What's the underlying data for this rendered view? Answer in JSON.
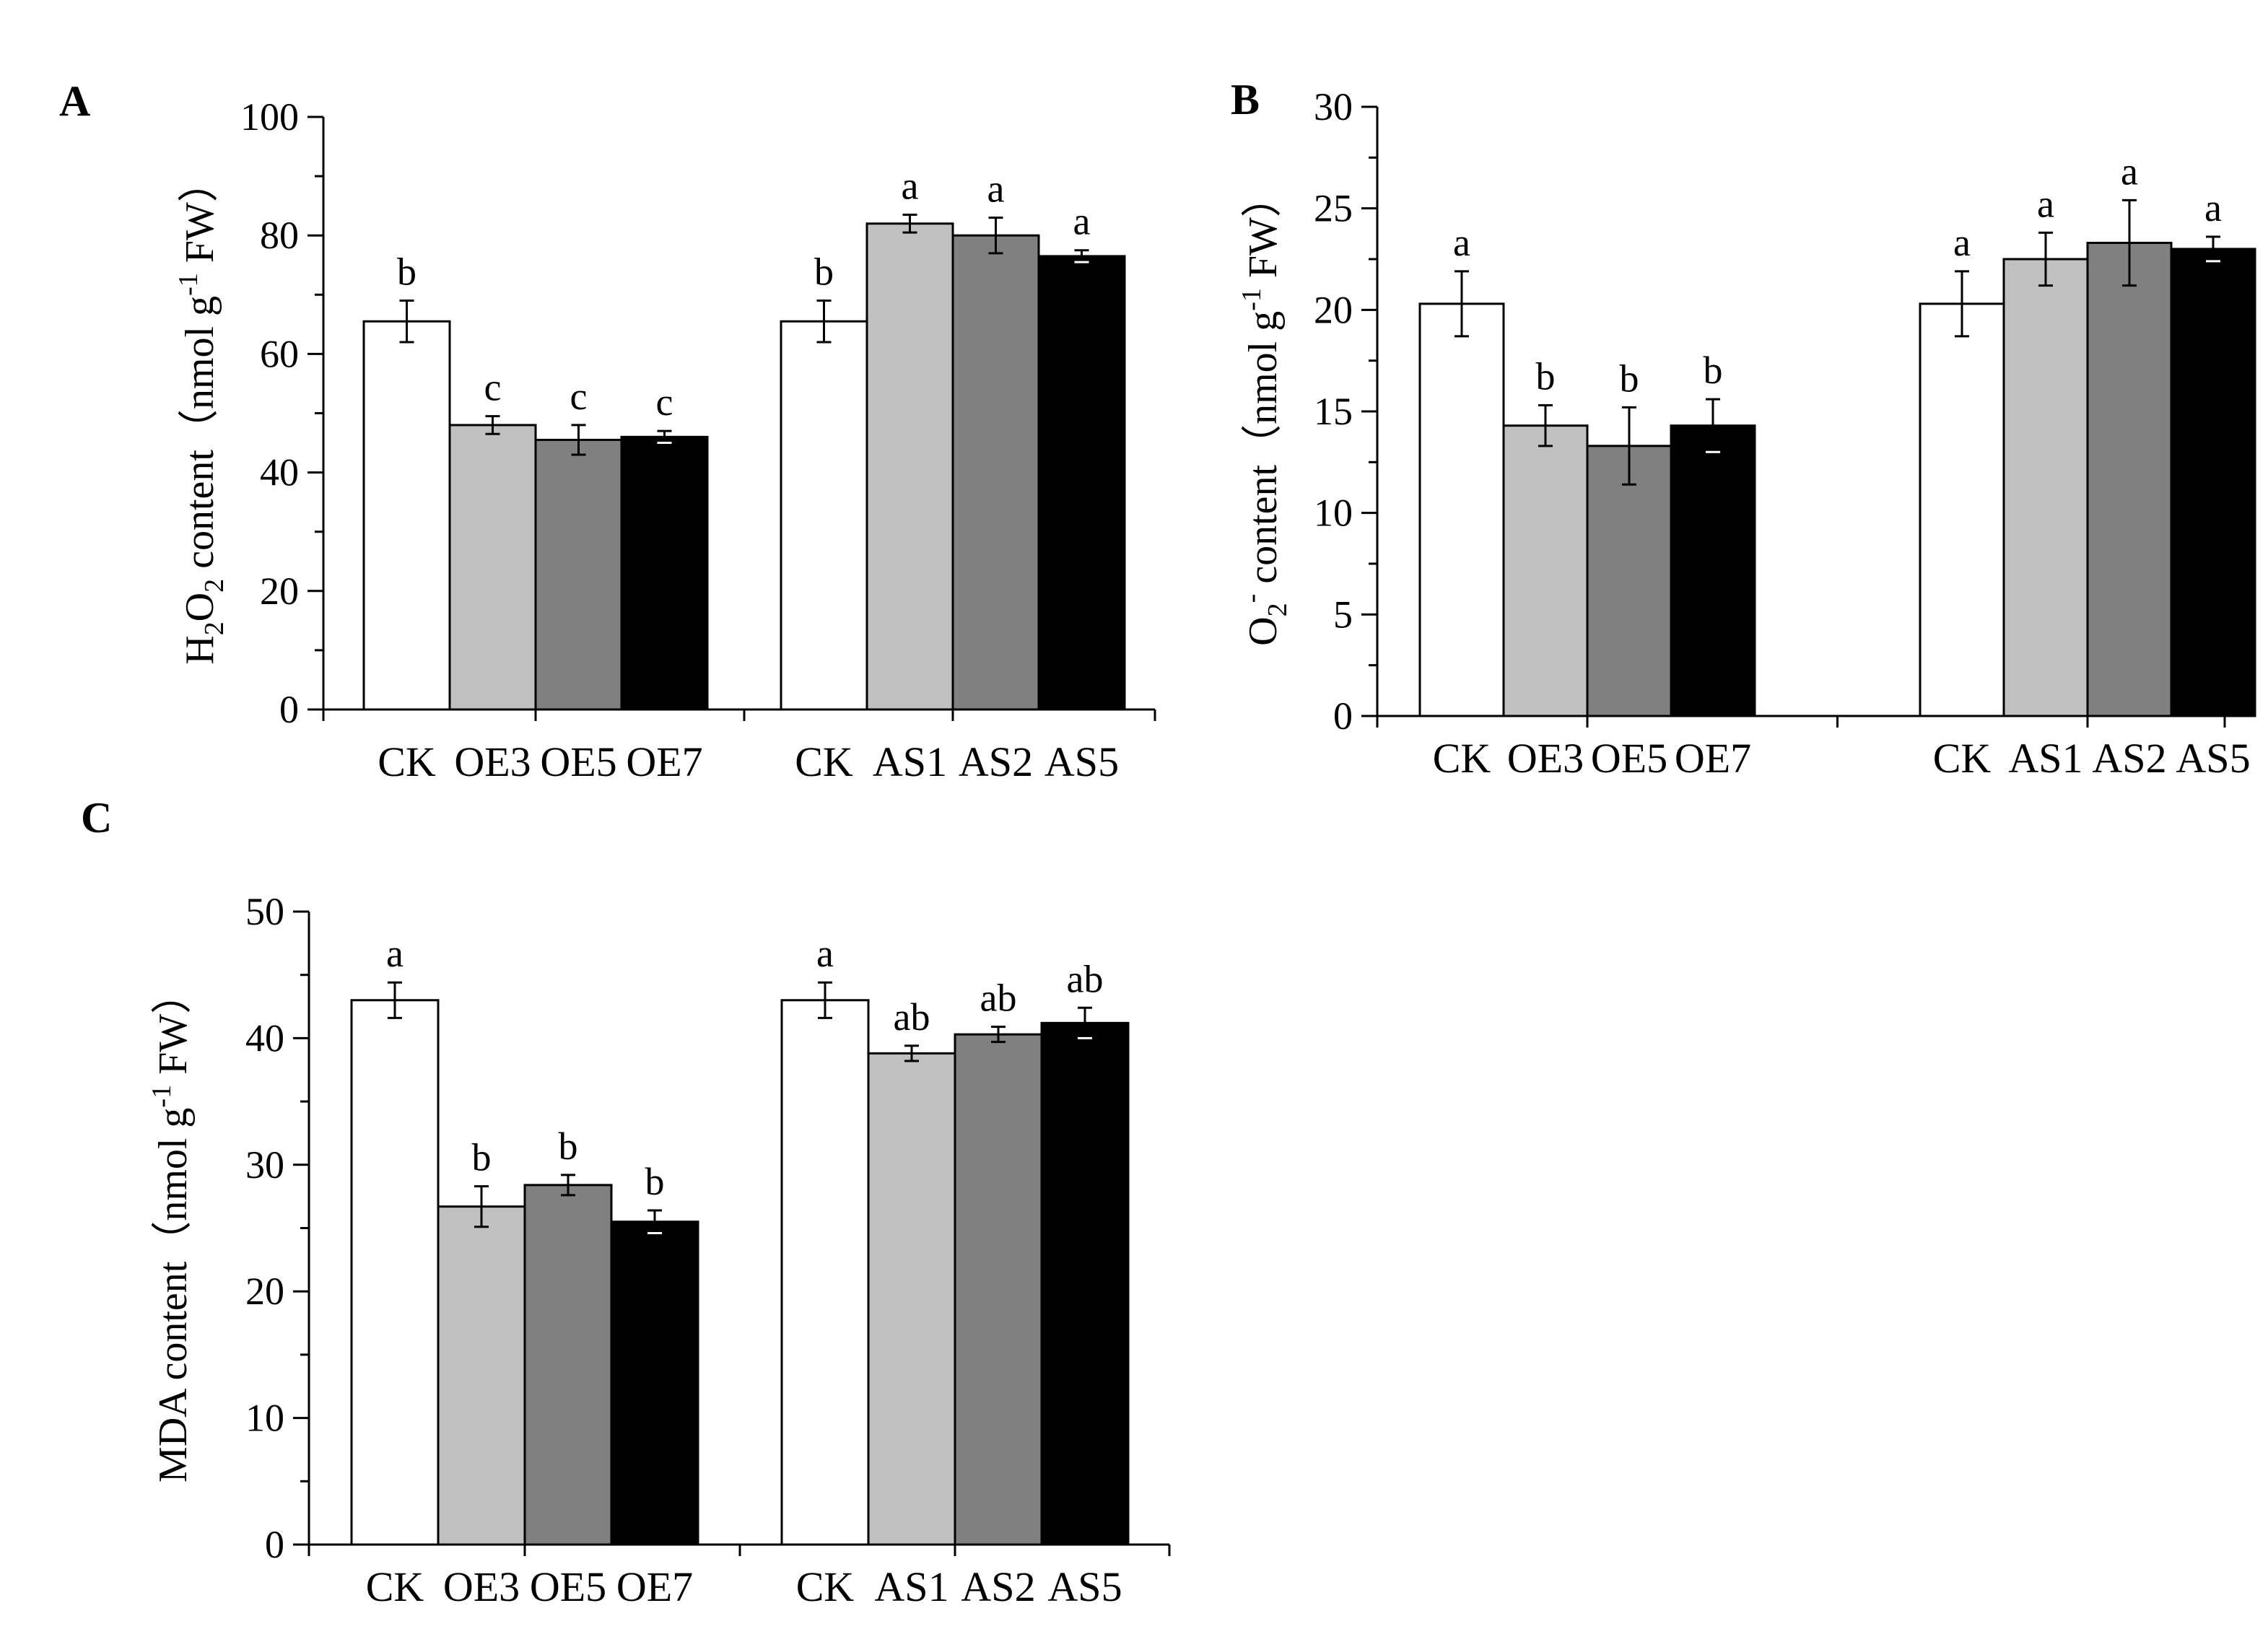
{
  "chart_data": [
    {
      "type": "bar",
      "panel": "A",
      "ylabel_parts": [
        "H",
        "2",
        "O",
        "2",
        " content（nmol g",
        "-1",
        " FW）"
      ],
      "ylim": [
        0,
        100
      ],
      "yticks": [
        "0",
        "20",
        "40",
        "60",
        "80",
        "100"
      ],
      "groups": [
        {
          "categories": [
            "CK",
            "OE3",
            "OE5",
            "OE7"
          ],
          "values": [
            65.5,
            48.0,
            45.5,
            46.0
          ],
          "errors": [
            3.5,
            1.5,
            2.5,
            1.0
          ],
          "significance": [
            "b",
            "c",
            "c",
            "c"
          ]
        },
        {
          "categories": [
            "CK",
            "AS1",
            "AS2",
            "AS5"
          ],
          "values": [
            65.5,
            82.0,
            80.0,
            76.5
          ],
          "errors": [
            3.5,
            1.5,
            3.0,
            1.0
          ],
          "significance": [
            "b",
            "a",
            "a",
            "a"
          ]
        }
      ]
    },
    {
      "type": "bar",
      "panel": "B",
      "ylabel_parts": [
        "O",
        "2",
        "-",
        " content（nmol g",
        "-1",
        " FW）"
      ],
      "ylim": [
        0,
        30
      ],
      "yticks": [
        "0",
        "5",
        "10",
        "15",
        "20",
        "25",
        "30"
      ],
      "groups": [
        {
          "categories": [
            "CK",
            "OE3",
            "OE5",
            "OE7"
          ],
          "values": [
            20.3,
            14.3,
            13.3,
            14.3
          ],
          "errors": [
            1.6,
            1.0,
            1.9,
            1.3
          ],
          "significance": [
            "a",
            "b",
            "b",
            "b"
          ]
        },
        {
          "categories": [
            "CK",
            "AS1",
            "AS2",
            "AS5"
          ],
          "values": [
            20.3,
            22.5,
            23.3,
            23.0
          ],
          "errors": [
            1.6,
            1.3,
            2.1,
            0.6
          ],
          "significance": [
            "a",
            "a",
            "a",
            "a"
          ]
        }
      ]
    },
    {
      "type": "bar",
      "panel": "C",
      "ylabel_parts": [
        "MDA content（nmol g",
        "-1",
        " FW）"
      ],
      "ylim": [
        0,
        50
      ],
      "yticks": [
        "0",
        "10",
        "20",
        "30",
        "40",
        "50"
      ],
      "groups": [
        {
          "categories": [
            "CK",
            "OE3",
            "OE5",
            "OE7"
          ],
          "values": [
            43.0,
            26.7,
            28.4,
            25.5
          ],
          "errors": [
            1.4,
            1.6,
            0.8,
            0.9
          ],
          "significance": [
            "a",
            "b",
            "b",
            "b"
          ]
        },
        {
          "categories": [
            "CK",
            "AS1",
            "AS2",
            "AS5"
          ],
          "values": [
            43.0,
            38.8,
            40.3,
            41.2
          ],
          "errors": [
            1.4,
            0.6,
            0.6,
            1.2
          ],
          "significance": [
            "a",
            "ab",
            "ab",
            "ab"
          ]
        }
      ]
    }
  ],
  "colors": {
    "bar_fills": [
      "#ffffff",
      "#c0c0c0",
      "#808080",
      "#000000"
    ],
    "stroke": "#000000"
  }
}
